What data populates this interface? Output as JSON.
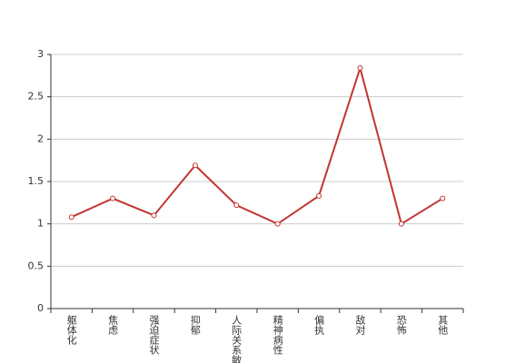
{
  "chart_data": {
    "type": "line",
    "categories": [
      "躯体化",
      "焦虑",
      "强迫症状",
      "抑郁",
      "人际关系敏感",
      "精神病性",
      "偏执",
      "敌对",
      "恐怖",
      "其他"
    ],
    "values": [
      1.08,
      1.3,
      1.1,
      1.69,
      1.22,
      1.0,
      1.33,
      2.84,
      1.0,
      1.3
    ],
    "color": "#c23531",
    "ylim": [
      0,
      3
    ],
    "yticks": [
      0,
      0.5,
      1,
      1.5,
      2,
      2.5,
      3
    ],
    "grid": true
  }
}
